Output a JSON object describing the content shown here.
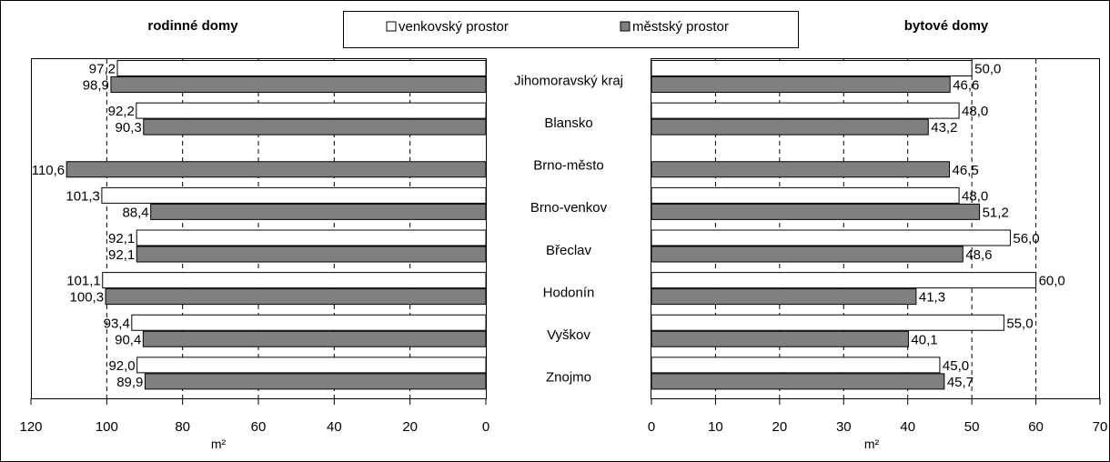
{
  "chart_data": [
    {
      "type": "bar",
      "orientation": "horizontal",
      "x_direction": "reversed",
      "title": "rodinné domy",
      "xlabel": "m²",
      "xlim": [
        0,
        120
      ],
      "x_ticks": [
        "120",
        "100",
        "80",
        "60",
        "40",
        "20",
        "0"
      ],
      "grid": "vertical dashed",
      "categories": [
        "Jihomoravský kraj",
        "Blansko",
        "Brno-město",
        "Brno-venkov",
        "Břeclav",
        "Hodonín",
        "Vyškov",
        "Znojmo"
      ],
      "series": [
        {
          "name": "venkovský prostor",
          "color": "#ffffff",
          "values": [
            97.2,
            92.2,
            null,
            101.3,
            92.1,
            101.1,
            93.4,
            92.0
          ],
          "labels": [
            "97,2",
            "92,2",
            "",
            "101,3",
            "92,1",
            "101,1",
            "93,4",
            "92,0"
          ]
        },
        {
          "name": "městský prostor",
          "color": "#808080",
          "values": [
            98.9,
            90.3,
            110.6,
            88.4,
            92.1,
            100.3,
            90.4,
            89.9
          ],
          "labels": [
            "98,9",
            "90,3",
            "110,6",
            "88,4",
            "92,1",
            "100,3",
            "90,4",
            "89,9"
          ]
        }
      ]
    },
    {
      "type": "bar",
      "orientation": "horizontal",
      "title": "bytové domy",
      "xlabel": "m²",
      "xlim": [
        0,
        70
      ],
      "x_ticks": [
        "0",
        "10",
        "20",
        "30",
        "40",
        "50",
        "60",
        "70"
      ],
      "grid": "vertical dashed",
      "categories": [
        "Jihomoravský kraj",
        "Blansko",
        "Brno-město",
        "Brno-venkov",
        "Břeclav",
        "Hodonín",
        "Vyškov",
        "Znojmo"
      ],
      "series": [
        {
          "name": "venkovský prostor",
          "color": "#ffffff",
          "values": [
            50.0,
            48.0,
            null,
            48.0,
            56.0,
            60.0,
            55.0,
            45.0
          ],
          "labels": [
            "50,0",
            "48,0",
            "",
            "48,0",
            "56,0",
            "60,0",
            "55,0",
            "45,0"
          ]
        },
        {
          "name": "městský prostor",
          "color": "#808080",
          "values": [
            46.6,
            43.2,
            46.5,
            51.2,
            48.6,
            41.3,
            40.1,
            45.7
          ],
          "labels": [
            "46,6",
            "43,2",
            "46,5",
            "51,2",
            "48,6",
            "41,3",
            "40,1",
            "45,7"
          ]
        }
      ]
    }
  ],
  "legend": {
    "placement": "top-center",
    "items": [
      {
        "label": "venkovský prostor",
        "color": "#ffffff"
      },
      {
        "label": "městský prostor",
        "color": "#808080"
      }
    ]
  }
}
